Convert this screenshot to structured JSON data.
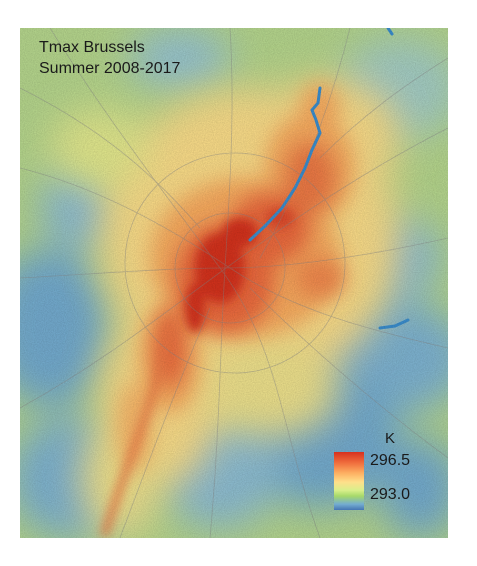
{
  "map": {
    "title_line1": "Tmax Brussels",
    "title_line2": "Summer 2008-2017",
    "legend": {
      "unit": "K",
      "max": "296.5",
      "min": "293.0",
      "colors": [
        "#d7301f",
        "#ef6b3c",
        "#fdae61",
        "#fee08b",
        "#d9ef8b",
        "#a6d96a",
        "#74add1",
        "#4575b4"
      ]
    },
    "colors": {
      "hot": "#d7301f",
      "warm": "#fdae61",
      "mild": "#fee08b",
      "cool": "#a6d96a",
      "cold": "#74add1",
      "water": "#3b8fd0",
      "roads": "#8a8a8a"
    }
  }
}
